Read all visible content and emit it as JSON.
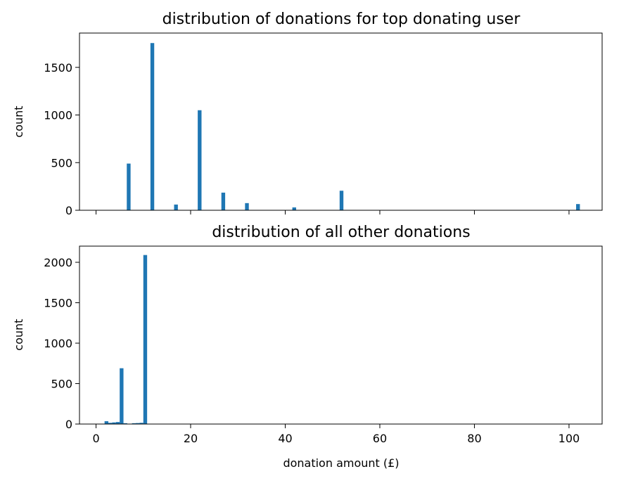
{
  "chart_data": [
    {
      "type": "bar",
      "title": "distribution of donations for top donating user",
      "xlabel": "",
      "ylabel": "count",
      "xlim": [
        -3.5,
        107
      ],
      "ylim": [
        0,
        1860
      ],
      "xticks": [
        0,
        20,
        40,
        60,
        80,
        100
      ],
      "xtick_labels_shown": false,
      "yticks": [
        0,
        500,
        1000,
        1500
      ],
      "ytick_labels": [
        "0",
        "500",
        "1000",
        "1500"
      ],
      "bar_color": "#1f77b4",
      "bin_width": 0.8,
      "x": [
        6.9,
        11.9,
        16.9,
        21.9,
        26.9,
        31.9,
        41.9,
        51.9,
        101.9
      ],
      "values": [
        490,
        1755,
        60,
        1050,
        185,
        75,
        30,
        205,
        65
      ]
    },
    {
      "type": "bar",
      "title": "distribution of all other donations",
      "xlabel": "donation amount (£)",
      "ylabel": "count",
      "xlim": [
        -3.5,
        107
      ],
      "ylim": [
        0,
        2200
      ],
      "xticks": [
        0,
        20,
        40,
        60,
        80,
        100
      ],
      "xtick_labels": [
        "0",
        "20",
        "40",
        "60",
        "80",
        "100"
      ],
      "yticks": [
        0,
        500,
        1000,
        1500,
        2000
      ],
      "ytick_labels": [
        "0",
        "500",
        "1000",
        "1500",
        "2000"
      ],
      "bar_color": "#1f77b4",
      "bin_width": 0.8,
      "x": [
        2.2,
        3.0,
        3.8,
        4.6,
        5.4,
        6.2,
        8.0,
        8.8,
        9.6,
        10.4
      ],
      "values": [
        35,
        15,
        20,
        25,
        690,
        10,
        10,
        12,
        15,
        2090
      ]
    }
  ]
}
